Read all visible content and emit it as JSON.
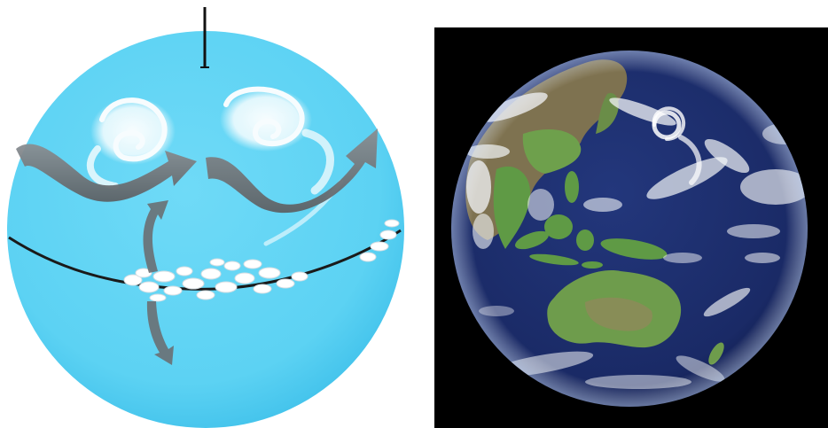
{
  "panels": [
    {
      "kind": "schematic-earth-diagram",
      "elements": [
        "rotation-axis",
        "jet-stream-arrows",
        "storm-swirls",
        "equator-line",
        "equatorial-cloud-band",
        "vertical-circulation-arrows"
      ]
    },
    {
      "kind": "satellite-earth-image",
      "background": "#000000"
    }
  ],
  "colors": {
    "diagram_sphere": "#5cd2f3",
    "diagram_edge": "#2aa6d6",
    "arrow_fill": "#6f7478",
    "equator_line": "#1a1a1a",
    "ocean": "#1c2d6c",
    "land_green": "#5f9a45",
    "land_brown": "#8c7a55",
    "cloud_white": "#f4f6f8"
  }
}
